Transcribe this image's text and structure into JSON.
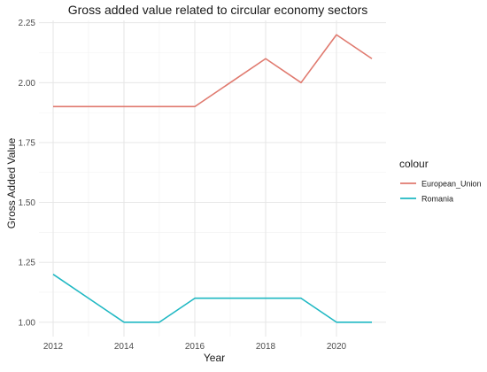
{
  "chart_data": {
    "type": "line",
    "title": "Gross added value related to circular economy sectors",
    "xlabel": "Year",
    "ylabel": "Gross Added Value",
    "x": [
      2012,
      2013,
      2014,
      2015,
      2016,
      2017,
      2018,
      2019,
      2020,
      2021
    ],
    "xlim": [
      2011.6,
      2021.4
    ],
    "ylim": [
      0.94,
      2.26
    ],
    "xticks": [
      2012,
      2014,
      2016,
      2018,
      2020
    ],
    "xtick_labels": [
      "2012",
      "2014",
      "2016",
      "2018",
      "2020"
    ],
    "yticks": [
      1.0,
      1.25,
      1.5,
      1.75,
      2.0,
      2.25
    ],
    "ytick_labels": [
      "1.00",
      "1.25",
      "1.50",
      "1.75",
      "2.00",
      "2.25"
    ],
    "grid": true,
    "legend": {
      "title": "colour",
      "position": "right"
    },
    "series": [
      {
        "name": "European_Union",
        "color": "#e07a6f",
        "values": [
          1.9,
          1.9,
          1.9,
          1.9,
          1.9,
          2.0,
          2.1,
          2.0,
          2.2,
          2.1
        ]
      },
      {
        "name": "Romania",
        "color": "#1fb8c3",
        "values": [
          1.2,
          1.1,
          1.0,
          1.0,
          1.1,
          1.1,
          1.1,
          1.1,
          1.0,
          1.0
        ]
      }
    ]
  }
}
